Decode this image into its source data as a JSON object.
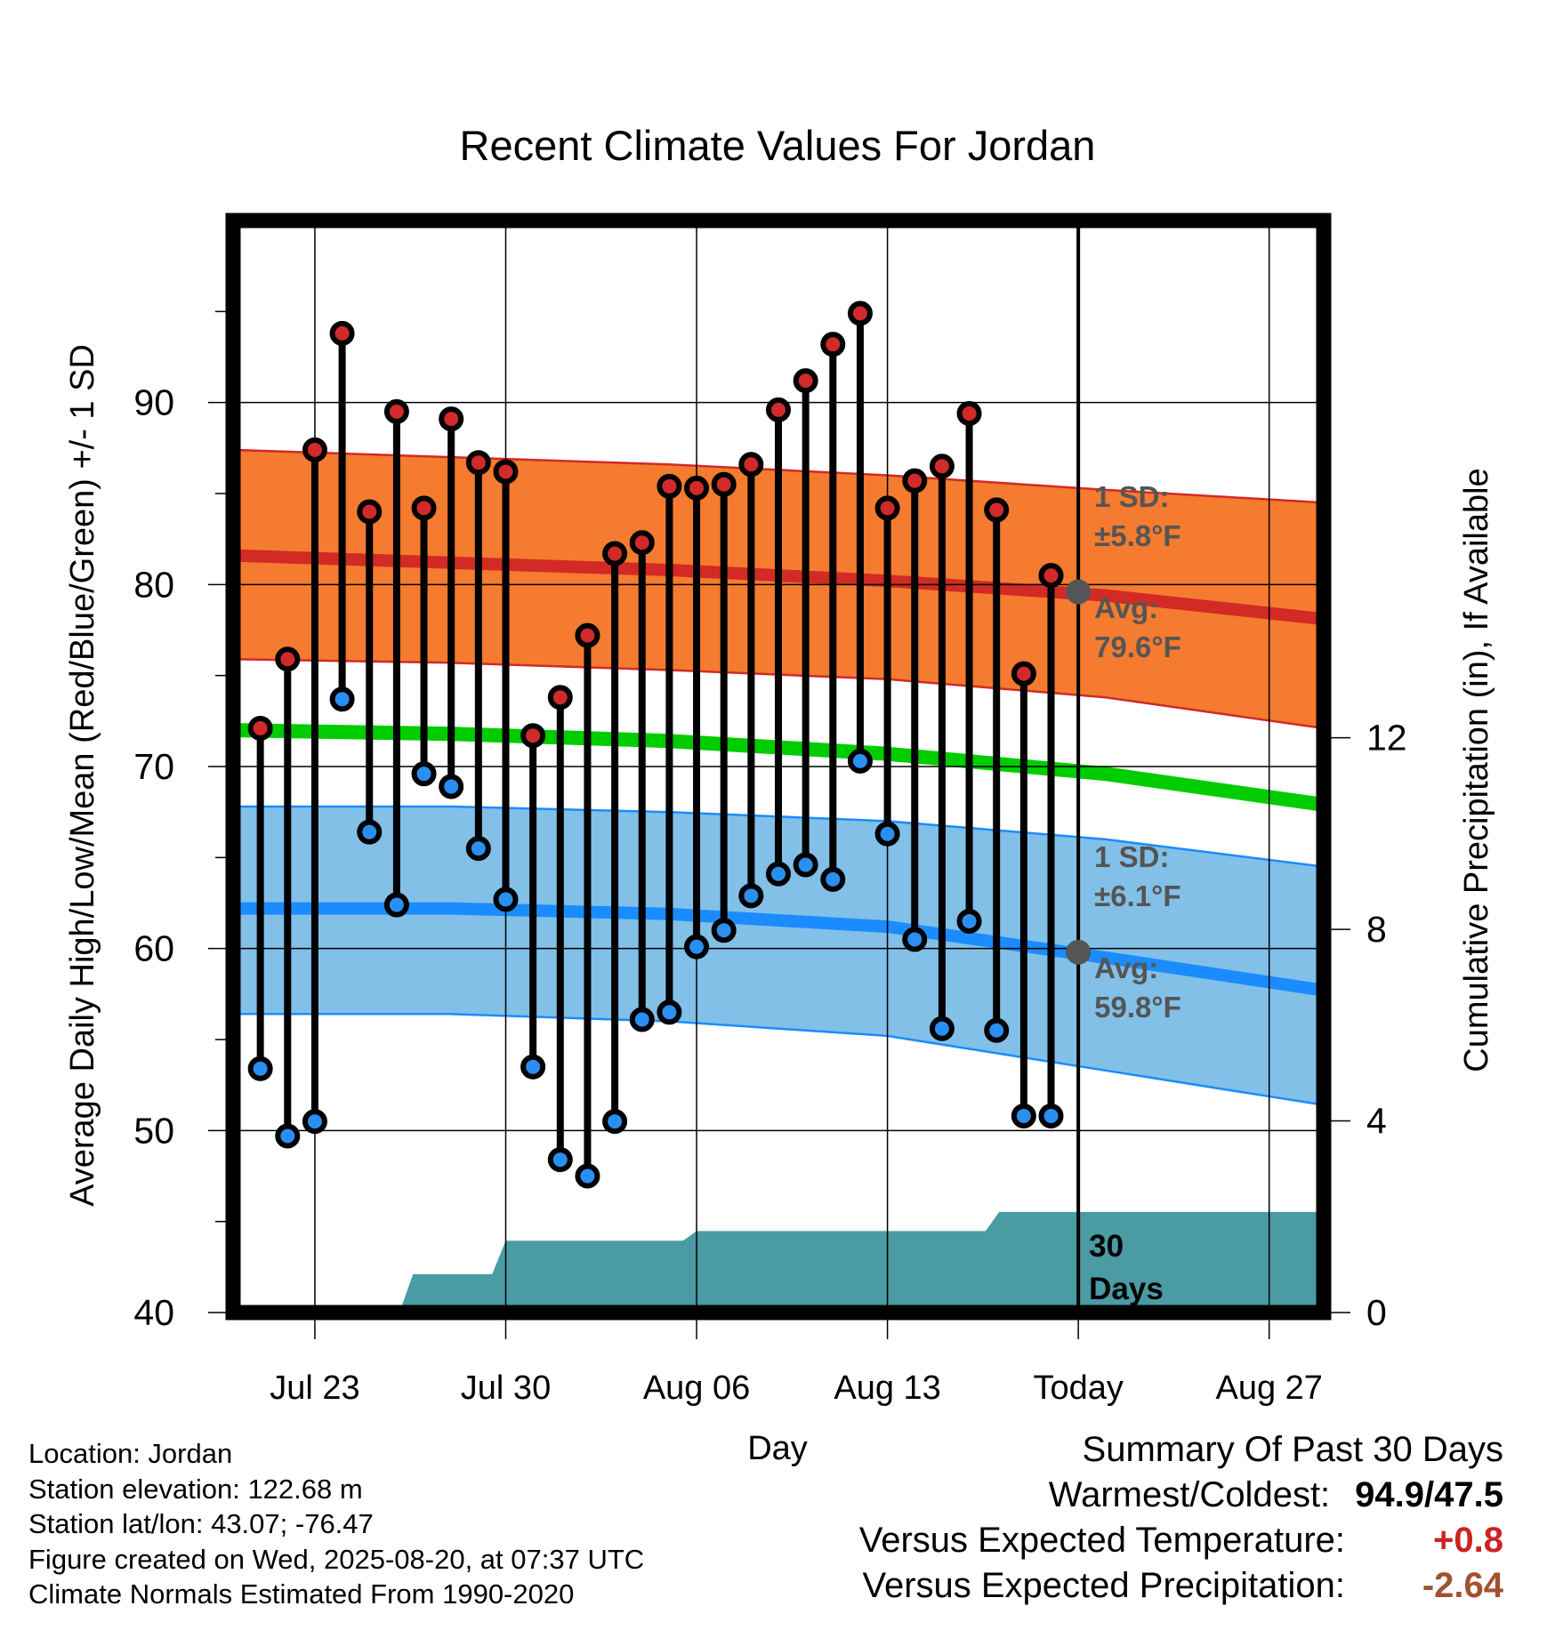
{
  "chart_data": {
    "type": "line",
    "title": "Recent Climate Values For Jordan",
    "xlabel": "Day",
    "ylabel_left": "Average Daily High/Low/Mean (Red/Blue/Green) +/- 1 SD",
    "ylabel_right": "Cumulative Precipitation (in), If Available",
    "ylim_left": [
      40,
      100
    ],
    "ylim_right": [
      0,
      22.8
    ],
    "y_ticks_left": [
      40,
      50,
      60,
      70,
      80,
      90
    ],
    "y_ticks_right": [
      0,
      4,
      8,
      12
    ],
    "x_ticks": [
      {
        "day": 3,
        "label": "Jul 23"
      },
      {
        "day": 10,
        "label": "Jul 30"
      },
      {
        "day": 17,
        "label": "Aug 06"
      },
      {
        "day": 24,
        "label": "Aug 13"
      },
      {
        "day": 31,
        "label": "Today"
      },
      {
        "day": 38,
        "label": "Aug 27"
      }
    ],
    "today_day": 31,
    "today_label": "30 Days",
    "grid": true,
    "days": [
      1,
      2,
      3,
      4,
      5,
      6,
      7,
      8,
      9,
      10,
      11,
      12,
      13,
      14,
      15,
      16,
      17,
      18,
      19,
      20,
      21,
      22,
      23,
      24,
      25,
      26,
      27,
      28,
      29,
      30
    ],
    "highs": [
      72.1,
      75.9,
      87.4,
      93.8,
      84.0,
      89.5,
      84.2,
      89.1,
      86.7,
      86.2,
      71.7,
      73.8,
      77.2,
      81.7,
      82.3,
      85.4,
      85.3,
      85.5,
      86.6,
      89.6,
      91.2,
      93.2,
      94.9,
      84.2,
      85.7,
      86.5,
      89.4,
      84.1,
      75.1,
      80.5
    ],
    "lows": [
      53.4,
      49.7,
      50.5,
      73.7,
      66.4,
      62.4,
      69.6,
      68.9,
      65.5,
      62.7,
      53.5,
      48.4,
      47.5,
      50.5,
      56.1,
      56.5,
      60.1,
      61.0,
      62.9,
      64.1,
      64.6,
      63.8,
      70.3,
      66.3,
      60.5,
      55.6,
      61.5,
      55.5,
      50.8,
      50.8
    ],
    "normals": {
      "x": [
        0,
        8,
        16,
        24,
        32,
        40
      ],
      "high_mean": [
        81.6,
        81.2,
        80.8,
        80.2,
        79.4,
        78.1
      ],
      "high_upper": [
        87.4,
        87.0,
        86.6,
        86.0,
        85.2,
        84.5
      ],
      "high_lower": [
        75.9,
        75.7,
        75.3,
        74.8,
        73.8,
        72.1
      ],
      "mean": [
        72.0,
        71.8,
        71.4,
        70.7,
        69.6,
        67.9
      ],
      "low_mean": [
        62.2,
        62.2,
        61.9,
        61.2,
        59.5,
        57.7
      ],
      "low_upper": [
        67.8,
        67.8,
        67.5,
        67.0,
        66.0,
        64.5
      ],
      "low_lower": [
        56.4,
        56.4,
        56.0,
        55.2,
        53.3,
        51.4
      ]
    },
    "precip_steps": [
      {
        "day": 0,
        "value": 0
      },
      {
        "day": 6.6,
        "value": 0.8
      },
      {
        "day": 10,
        "value": 1.5
      },
      {
        "day": 17,
        "value": 1.7
      },
      {
        "day": 28.1,
        "value": 2.1
      },
      {
        "day": 40,
        "value": 2.1
      }
    ],
    "annotations": {
      "high_sd_label": "1 SD:",
      "high_sd_value": "±5.8°F",
      "high_avg_label": "Avg:",
      "high_avg_value": "79.6°F",
      "high_avg": 79.6,
      "low_sd_label": "1 SD:",
      "low_sd_value": "±6.1°F",
      "low_avg_label": "Avg:",
      "low_avg_value": "59.8°F",
      "low_avg": 59.8
    },
    "colors": {
      "high_band": "#f47b2f",
      "high_line": "#d22a25",
      "mean_line": "#00cc00",
      "low_band": "#82c0e8",
      "low_line": "#1a8cff",
      "precip": "#4a9ba3",
      "annotation": "#555555",
      "marker_high": "#d02a2a",
      "marker_low": "#2a8ff0",
      "today_dot": "#555555"
    }
  },
  "footer": {
    "location": "Location: Jordan",
    "elevation": "Station elevation: 122.68 m",
    "latlon": "Station lat/lon: 43.07; -76.47",
    "created": "Figure created on Wed, 2025-08-20, at 07:37 UTC",
    "normals": "Climate Normals Estimated From 1990-2020"
  },
  "summary": {
    "title": "Summary Of Past 30 Days",
    "warmest_label": "Warmest/Coldest:",
    "warmest_value": "94.9/47.5",
    "temp_label": "Versus Expected Temperature:",
    "temp_value": "+0.8",
    "temp_color": "#cc2222",
    "precip_label": "Versus Expected Precipitation:",
    "precip_value": "-2.64",
    "precip_color": "#a0522d"
  }
}
